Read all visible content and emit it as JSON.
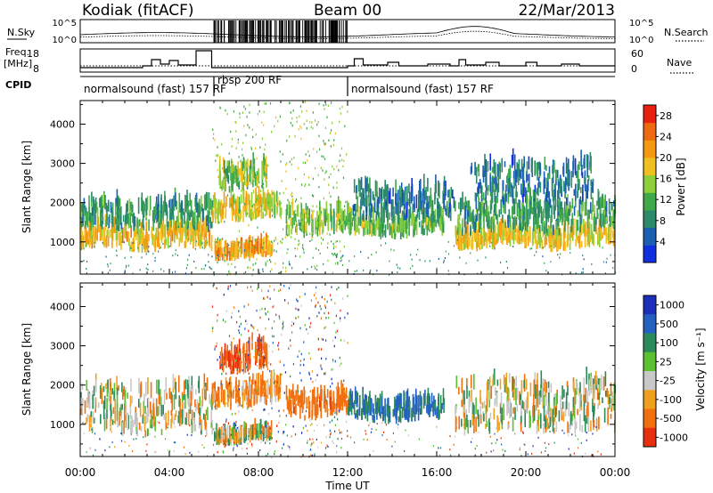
{
  "header": {
    "station": "Kodiak (fitACF)",
    "beam": "Beam 00",
    "date": "22/Mar/2013"
  },
  "strips": {
    "nsky_label": "N.Sky",
    "nsearch_label": "N.Search",
    "nsky_ticks": [
      "10^5",
      "10^0"
    ],
    "nsearch_ticks": [
      "10^5",
      "10^0"
    ],
    "freq_label_1": "Freq.",
    "freq_label_2": "[MHz]",
    "freq_ticks": [
      "18",
      "8"
    ],
    "nave_label": "Nave",
    "nave_ticks": [
      "60",
      "0"
    ],
    "cpid_label": "CPID",
    "cpid_segments": [
      {
        "label": "normalsound (fast) 157 RF",
        "start": 0,
        "end": 6
      },
      {
        "label": "rbsp 200 RF",
        "start": 6,
        "end": 12
      },
      {
        "label": "normalsound (fast) 157 RF",
        "start": 12,
        "end": 24
      }
    ]
  },
  "colors": {
    "power_scale": [
      "#1030e0",
      "#1a5fb0",
      "#2a8a6a",
      "#3fa84a",
      "#8ccf3a",
      "#f0c020",
      "#f59a10",
      "#ee6a10",
      "#e82010"
    ],
    "velocity_scale": [
      "#1c2fb8",
      "#2460c0",
      "#2b8a5a",
      "#5cc030",
      "#c8c8c8",
      "#f0a020",
      "#f07010",
      "#e83010"
    ]
  },
  "chart_data": [
    {
      "type": "heatmap",
      "title": "",
      "xlabel": "Time UT",
      "ylabel": "Slant Range [km]",
      "x_ticks": [
        "00:00",
        "04:00",
        "08:00",
        "12:00",
        "16:00",
        "20:00",
        "00:00"
      ],
      "x_range_hours": [
        0,
        24
      ],
      "y_ticks": [
        1000,
        2000,
        3000,
        4000
      ],
      "y_range_km": [
        180,
        4600
      ],
      "colorbar": {
        "label": "Power [dB]",
        "ticks": [
          4,
          8,
          12,
          16,
          20,
          24,
          28
        ],
        "range": [
          0,
          30
        ]
      },
      "echo_regions": [
        {
          "t0": 0.0,
          "t1": 5.9,
          "r0": 780,
          "r1": 1250,
          "level": 20
        },
        {
          "t0": 0.0,
          "t1": 5.9,
          "r0": 1250,
          "r1": 1900,
          "level": 9
        },
        {
          "t0": 5.9,
          "t1": 9.0,
          "r0": 1500,
          "r1": 2000,
          "level": 18
        },
        {
          "t0": 6.2,
          "t1": 8.4,
          "r0": 2300,
          "r1": 2900,
          "level": 14
        },
        {
          "t0": 6.0,
          "t1": 8.6,
          "r0": 550,
          "r1": 750,
          "level": 22
        },
        {
          "t0": 9.2,
          "t1": 12.0,
          "r0": 1150,
          "r1": 1700,
          "level": 14
        },
        {
          "t0": 12.0,
          "t1": 16.3,
          "r0": 1100,
          "r1": 1500,
          "level": 13
        },
        {
          "t0": 12.2,
          "t1": 16.8,
          "r0": 1500,
          "r1": 2300,
          "level": 6
        },
        {
          "t0": 16.8,
          "t1": 24.0,
          "r0": 800,
          "r1": 1200,
          "level": 19
        },
        {
          "t0": 16.8,
          "t1": 24.0,
          "r0": 1200,
          "r1": 1900,
          "level": 10
        },
        {
          "t0": 17.5,
          "t1": 23.0,
          "r0": 1900,
          "r1": 2900,
          "level": 6
        }
      ]
    },
    {
      "type": "heatmap",
      "title": "",
      "xlabel": "Time UT",
      "ylabel": "Slant Range [km]",
      "x_ticks": [
        "00:00",
        "04:00",
        "08:00",
        "12:00",
        "16:00",
        "20:00",
        "00:00"
      ],
      "x_range_hours": [
        0,
        24
      ],
      "y_ticks": [
        1000,
        2000,
        3000,
        4000
      ],
      "y_range_km": [
        180,
        4600
      ],
      "colorbar": {
        "label": "Velocity [m s⁻¹]",
        "ticks": [
          1000,
          500,
          100,
          25,
          -25,
          -100,
          -500,
          -1000
        ]
      },
      "echo_regions": [
        {
          "t0": 0.0,
          "t1": 5.9,
          "r0": 700,
          "r1": 1900,
          "level": 0
        },
        {
          "t0": 5.9,
          "t1": 9.0,
          "r0": 1400,
          "r1": 2000,
          "level": -100
        },
        {
          "t0": 6.2,
          "t1": 8.4,
          "r0": 2300,
          "r1": 2900,
          "level": -300
        },
        {
          "t0": 6.0,
          "t1": 8.6,
          "r0": 500,
          "r1": 700,
          "level": 0
        },
        {
          "t0": 9.2,
          "t1": 12.0,
          "r0": 1150,
          "r1": 1700,
          "level": -200
        },
        {
          "t0": 12.0,
          "t1": 16.3,
          "r0": 1050,
          "r1": 1500,
          "level": 300
        },
        {
          "t0": 16.8,
          "t1": 24.0,
          "r0": 750,
          "r1": 2000,
          "level": 0
        }
      ]
    }
  ]
}
